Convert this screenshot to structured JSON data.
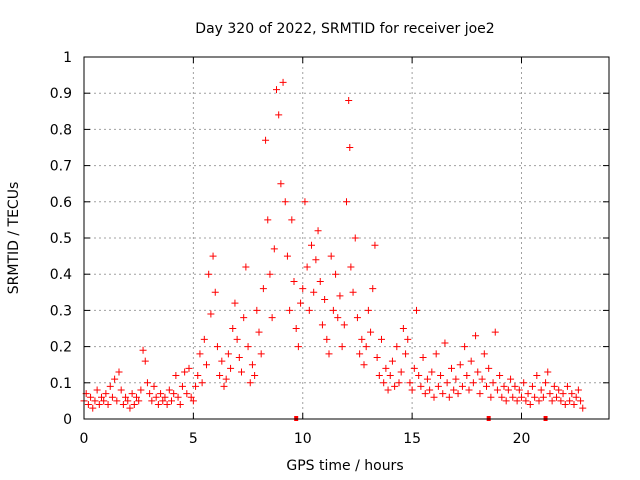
{
  "chart_data": {
    "type": "scatter",
    "title": "Day 320 of 2022, SRMTID for receiver joe2",
    "xlabel": "GPS time / hours",
    "ylabel": "SRMTID / TECUs",
    "xlim": [
      0,
      24
    ],
    "ylim": [
      0,
      1
    ],
    "xticks": [
      0,
      5,
      10,
      15,
      20
    ],
    "xtick_labels": [
      "0",
      "5",
      "10",
      "15",
      "20"
    ],
    "yticks": [
      0,
      0.1,
      0.2,
      0.3,
      0.4,
      0.5,
      0.6,
      0.7,
      0.8,
      0.9,
      1
    ],
    "ytick_labels": [
      "0",
      "0.1",
      "0.2",
      "0.3",
      "0.4",
      "0.5",
      "0.6",
      "0.7",
      "0.8",
      "0.9",
      "1"
    ],
    "grid": true,
    "marker": "plus",
    "marker_color": "#ff0000",
    "series": [
      {
        "name": "SRMTID",
        "points": [
          [
            0.0,
            0.05
          ],
          [
            0.1,
            0.07
          ],
          [
            0.2,
            0.04
          ],
          [
            0.3,
            0.06
          ],
          [
            0.4,
            0.03
          ],
          [
            0.5,
            0.05
          ],
          [
            0.6,
            0.08
          ],
          [
            0.7,
            0.04
          ],
          [
            0.8,
            0.06
          ],
          [
            0.9,
            0.05
          ],
          [
            1.0,
            0.07
          ],
          [
            1.1,
            0.04
          ],
          [
            1.2,
            0.09
          ],
          [
            1.3,
            0.06
          ],
          [
            1.4,
            0.11
          ],
          [
            1.5,
            0.05
          ],
          [
            1.6,
            0.13
          ],
          [
            1.7,
            0.08
          ],
          [
            1.8,
            0.04
          ],
          [
            1.9,
            0.06
          ],
          [
            2.0,
            0.05
          ],
          [
            2.1,
            0.03
          ],
          [
            2.2,
            0.07
          ],
          [
            2.3,
            0.04
          ],
          [
            2.4,
            0.06
          ],
          [
            2.5,
            0.05
          ],
          [
            2.6,
            0.08
          ],
          [
            2.7,
            0.19
          ],
          [
            2.8,
            0.16
          ],
          [
            2.9,
            0.1
          ],
          [
            3.0,
            0.07
          ],
          [
            3.1,
            0.05
          ],
          [
            3.2,
            0.09
          ],
          [
            3.3,
            0.06
          ],
          [
            3.4,
            0.04
          ],
          [
            3.5,
            0.07
          ],
          [
            3.6,
            0.05
          ],
          [
            3.7,
            0.06
          ],
          [
            3.8,
            0.04
          ],
          [
            3.9,
            0.08
          ],
          [
            4.0,
            0.05
          ],
          [
            4.1,
            0.07
          ],
          [
            4.2,
            0.12
          ],
          [
            4.3,
            0.06
          ],
          [
            4.4,
            0.04
          ],
          [
            4.5,
            0.09
          ],
          [
            4.6,
            0.13
          ],
          [
            4.7,
            0.07
          ],
          [
            4.8,
            0.14
          ],
          [
            4.9,
            0.06
          ],
          [
            5.0,
            0.05
          ],
          [
            5.1,
            0.09
          ],
          [
            5.2,
            0.12
          ],
          [
            5.3,
            0.18
          ],
          [
            5.4,
            0.1
          ],
          [
            5.5,
            0.22
          ],
          [
            5.6,
            0.15
          ],
          [
            5.7,
            0.4
          ],
          [
            5.8,
            0.29
          ],
          [
            5.9,
            0.45
          ],
          [
            6.0,
            0.35
          ],
          [
            6.1,
            0.2
          ],
          [
            6.2,
            0.12
          ],
          [
            6.3,
            0.16
          ],
          [
            6.4,
            0.09
          ],
          [
            6.5,
            0.11
          ],
          [
            6.6,
            0.18
          ],
          [
            6.7,
            0.14
          ],
          [
            6.8,
            0.25
          ],
          [
            6.9,
            0.32
          ],
          [
            7.0,
            0.22
          ],
          [
            7.1,
            0.17
          ],
          [
            7.2,
            0.13
          ],
          [
            7.3,
            0.28
          ],
          [
            7.4,
            0.42
          ],
          [
            7.5,
            0.2
          ],
          [
            7.6,
            0.1
          ],
          [
            7.7,
            0.15
          ],
          [
            7.8,
            0.12
          ],
          [
            7.9,
            0.3
          ],
          [
            8.0,
            0.24
          ],
          [
            8.1,
            0.18
          ],
          [
            8.2,
            0.36
          ],
          [
            8.3,
            0.77
          ],
          [
            8.4,
            0.55
          ],
          [
            8.5,
            0.4
          ],
          [
            8.6,
            0.28
          ],
          [
            8.7,
            0.47
          ],
          [
            8.8,
            0.91
          ],
          [
            8.9,
            0.84
          ],
          [
            9.0,
            0.65
          ],
          [
            9.1,
            0.93
          ],
          [
            9.2,
            0.6
          ],
          [
            9.3,
            0.45
          ],
          [
            9.4,
            0.3
          ],
          [
            9.5,
            0.55
          ],
          [
            9.6,
            0.38
          ],
          [
            9.7,
            0.25
          ],
          [
            9.8,
            0.2
          ],
          [
            9.9,
            0.32
          ],
          [
            10.0,
            0.36
          ],
          [
            10.1,
            0.6
          ],
          [
            10.2,
            0.42
          ],
          [
            10.3,
            0.3
          ],
          [
            10.4,
            0.48
          ],
          [
            10.5,
            0.35
          ],
          [
            10.6,
            0.44
          ],
          [
            10.7,
            0.52
          ],
          [
            10.8,
            0.38
          ],
          [
            10.9,
            0.26
          ],
          [
            11.0,
            0.33
          ],
          [
            11.1,
            0.22
          ],
          [
            11.2,
            0.18
          ],
          [
            11.3,
            0.45
          ],
          [
            11.4,
            0.3
          ],
          [
            11.5,
            0.4
          ],
          [
            11.6,
            0.28
          ],
          [
            11.7,
            0.34
          ],
          [
            11.8,
            0.2
          ],
          [
            11.9,
            0.26
          ],
          [
            12.0,
            0.6
          ],
          [
            12.1,
            0.88
          ],
          [
            12.15,
            0.75
          ],
          [
            12.2,
            0.42
          ],
          [
            12.3,
            0.35
          ],
          [
            12.4,
            0.5
          ],
          [
            12.5,
            0.28
          ],
          [
            12.6,
            0.18
          ],
          [
            12.7,
            0.22
          ],
          [
            12.8,
            0.15
          ],
          [
            12.9,
            0.2
          ],
          [
            13.0,
            0.3
          ],
          [
            13.1,
            0.24
          ],
          [
            13.2,
            0.36
          ],
          [
            13.3,
            0.48
          ],
          [
            13.4,
            0.17
          ],
          [
            13.5,
            0.12
          ],
          [
            13.6,
            0.22
          ],
          [
            13.7,
            0.1
          ],
          [
            13.8,
            0.14
          ],
          [
            13.9,
            0.08
          ],
          [
            14.0,
            0.12
          ],
          [
            14.1,
            0.16
          ],
          [
            14.2,
            0.09
          ],
          [
            14.3,
            0.2
          ],
          [
            14.4,
            0.1
          ],
          [
            14.5,
            0.13
          ],
          [
            14.6,
            0.25
          ],
          [
            14.7,
            0.18
          ],
          [
            14.8,
            0.22
          ],
          [
            14.9,
            0.1
          ],
          [
            15.0,
            0.08
          ],
          [
            15.1,
            0.14
          ],
          [
            15.2,
            0.3
          ],
          [
            15.3,
            0.12
          ],
          [
            15.4,
            0.09
          ],
          [
            15.5,
            0.17
          ],
          [
            15.6,
            0.07
          ],
          [
            15.7,
            0.11
          ],
          [
            15.8,
            0.08
          ],
          [
            15.9,
            0.13
          ],
          [
            16.0,
            0.06
          ],
          [
            16.1,
            0.18
          ],
          [
            16.2,
            0.09
          ],
          [
            16.3,
            0.12
          ],
          [
            16.4,
            0.07
          ],
          [
            16.5,
            0.21
          ],
          [
            16.6,
            0.1
          ],
          [
            16.7,
            0.06
          ],
          [
            16.8,
            0.14
          ],
          [
            16.9,
            0.08
          ],
          [
            17.0,
            0.11
          ],
          [
            17.1,
            0.07
          ],
          [
            17.2,
            0.15
          ],
          [
            17.3,
            0.09
          ],
          [
            17.4,
            0.2
          ],
          [
            17.5,
            0.12
          ],
          [
            17.6,
            0.08
          ],
          [
            17.7,
            0.16
          ],
          [
            17.8,
            0.1
          ],
          [
            17.9,
            0.23
          ],
          [
            18.0,
            0.13
          ],
          [
            18.1,
            0.07
          ],
          [
            18.2,
            0.11
          ],
          [
            18.3,
            0.18
          ],
          [
            18.4,
            0.09
          ],
          [
            18.5,
            0.14
          ],
          [
            18.6,
            0.06
          ],
          [
            18.7,
            0.1
          ],
          [
            18.8,
            0.24
          ],
          [
            18.9,
            0.08
          ],
          [
            19.0,
            0.12
          ],
          [
            19.1,
            0.06
          ],
          [
            19.2,
            0.09
          ],
          [
            19.3,
            0.05
          ],
          [
            19.4,
            0.08
          ],
          [
            19.5,
            0.11
          ],
          [
            19.6,
            0.06
          ],
          [
            19.7,
            0.09
          ],
          [
            19.8,
            0.05
          ],
          [
            19.9,
            0.08
          ],
          [
            20.0,
            0.06
          ],
          [
            20.1,
            0.1
          ],
          [
            20.2,
            0.05
          ],
          [
            20.3,
            0.07
          ],
          [
            20.4,
            0.04
          ],
          [
            20.5,
            0.09
          ],
          [
            20.6,
            0.06
          ],
          [
            20.7,
            0.12
          ],
          [
            20.8,
            0.05
          ],
          [
            20.9,
            0.08
          ],
          [
            21.0,
            0.06
          ],
          [
            21.1,
            0.1
          ],
          [
            21.2,
            0.13
          ],
          [
            21.3,
            0.07
          ],
          [
            21.4,
            0.05
          ],
          [
            21.5,
            0.09
          ],
          [
            21.6,
            0.06
          ],
          [
            21.7,
            0.08
          ],
          [
            21.8,
            0.05
          ],
          [
            21.9,
            0.07
          ],
          [
            22.0,
            0.04
          ],
          [
            22.1,
            0.09
          ],
          [
            22.2,
            0.05
          ],
          [
            22.3,
            0.07
          ],
          [
            22.4,
            0.04
          ],
          [
            22.5,
            0.06
          ],
          [
            22.6,
            0.08
          ],
          [
            22.7,
            0.05
          ],
          [
            22.8,
            0.03
          ]
        ]
      }
    ],
    "axis_markers_x": [
      9.7,
      18.5,
      21.1
    ]
  }
}
